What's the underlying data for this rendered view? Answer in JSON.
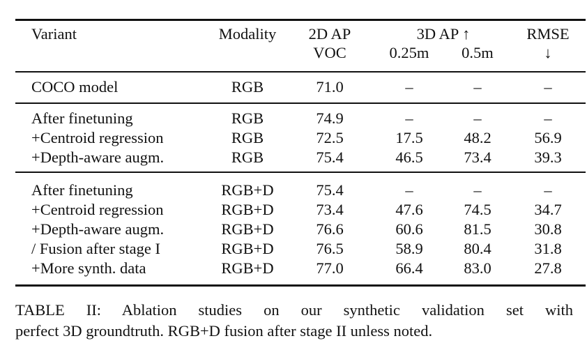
{
  "table": {
    "header": {
      "variant": "Variant",
      "modality": "Modality",
      "ap2d_top": "2D AP",
      "ap2d_bottom": "VOC",
      "ap3d_top": "3D AP ↑",
      "ap3d_025": "0.25m",
      "ap3d_05": "0.5m",
      "rmse_top": "RMSE",
      "rmse_bottom": "↓"
    },
    "groups": [
      [
        [
          "COCO model",
          "RGB",
          "71.0",
          "–",
          "–",
          "–"
        ]
      ],
      [
        [
          "After finetuning",
          "RGB",
          "74.9",
          "–",
          "–",
          "–"
        ],
        [
          "+Centroid regression",
          "RGB",
          "72.5",
          "17.5",
          "48.2",
          "56.9"
        ],
        [
          "+Depth-aware augm.",
          "RGB",
          "75.4",
          "46.5",
          "73.4",
          "39.3"
        ]
      ],
      [
        [
          "After finetuning",
          "RGB+D",
          "75.4",
          "–",
          "–",
          "–"
        ],
        [
          "+Centroid regression",
          "RGB+D",
          "73.4",
          "47.6",
          "74.5",
          "34.7"
        ],
        [
          "+Depth-aware augm.",
          "RGB+D",
          "76.6",
          "60.6",
          "81.5",
          "30.8"
        ],
        [
          "/ Fusion after stage I",
          "RGB+D",
          "76.5",
          "58.9",
          "80.4",
          "31.8"
        ],
        [
          "+More synth. data",
          "RGB+D",
          "77.0",
          "66.4",
          "83.0",
          "27.8"
        ]
      ]
    ]
  },
  "caption": {
    "line1": "TABLE II: Ablation studies on our synthetic validation set with",
    "line2": "perfect 3D groundtruth. RGB+D fusion after stage II unless noted."
  }
}
